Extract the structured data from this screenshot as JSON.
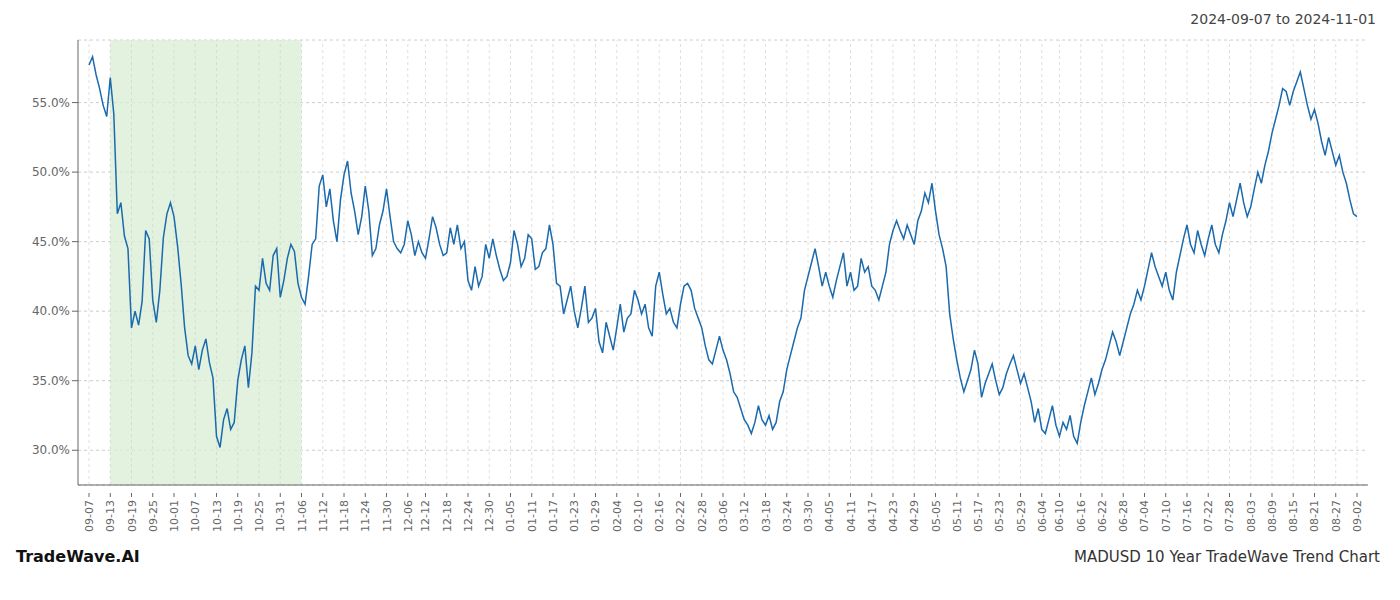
{
  "chart_data": {
    "type": "line",
    "title": "MADUSD 10 Year TradeWave Trend Chart",
    "subtitle": "2024-09-07 to 2024-11-01",
    "annotations": [
      "TradeWave.AI"
    ],
    "color": "#1a6aad",
    "grid": true,
    "shade": {
      "from": "09-13",
      "to": "11-06",
      "color": "#d8edd4"
    },
    "ylim": [
      0.275,
      0.595
    ],
    "yticks": [
      {
        "value": 0.3,
        "label": "30.0%"
      },
      {
        "value": 0.35,
        "label": "35.0%"
      },
      {
        "value": 0.4,
        "label": "40.0%"
      },
      {
        "value": 0.45,
        "label": "45.0%"
      },
      {
        "value": 0.5,
        "label": "50.0%"
      },
      {
        "value": 0.55,
        "label": "55.0%"
      }
    ],
    "categories": [
      "09-07",
      null,
      null,
      null,
      null,
      null,
      "09-13",
      null,
      null,
      null,
      null,
      null,
      "09-19",
      null,
      null,
      null,
      null,
      null,
      "09-25",
      null,
      null,
      null,
      null,
      null,
      "10-01",
      null,
      null,
      null,
      null,
      null,
      "10-07",
      null,
      null,
      null,
      null,
      null,
      "10-13",
      null,
      null,
      null,
      null,
      null,
      "10-19",
      null,
      null,
      null,
      null,
      null,
      "10-25",
      null,
      null,
      null,
      null,
      null,
      "10-31",
      null,
      null,
      null,
      null,
      null,
      "11-06",
      null,
      null,
      null,
      null,
      null,
      "11-12",
      null,
      null,
      null,
      null,
      null,
      "11-18",
      null,
      null,
      null,
      null,
      null,
      "11-24",
      null,
      null,
      null,
      null,
      null,
      "11-30",
      null,
      null,
      null,
      null,
      null,
      "12-06",
      null,
      null,
      null,
      null,
      "12-12",
      null,
      null,
      null,
      null,
      null,
      "12-18",
      null,
      null,
      null,
      null,
      null,
      "12-24",
      null,
      null,
      null,
      null,
      null,
      "12-30",
      null,
      null,
      null,
      null,
      null,
      "01-05",
      null,
      null,
      null,
      null,
      null,
      "01-11",
      null,
      null,
      null,
      null,
      null,
      "01-17",
      null,
      null,
      null,
      null,
      null,
      "01-23",
      null,
      null,
      null,
      null,
      null,
      "01-29",
      null,
      null,
      null,
      null,
      null,
      "02-04",
      null,
      null,
      null,
      null,
      null,
      "02-10",
      null,
      null,
      null,
      null,
      null,
      "02-16",
      null,
      null,
      null,
      null,
      null,
      "02-22",
      null,
      null,
      null,
      null,
      null,
      "02-28",
      null,
      null,
      null,
      null,
      null,
      "03-06",
      null,
      null,
      null,
      null,
      null,
      "03-12",
      null,
      null,
      null,
      null,
      null,
      "03-18",
      null,
      null,
      null,
      null,
      null,
      "03-24",
      null,
      null,
      null,
      null,
      null,
      "03-30",
      null,
      null,
      null,
      null,
      null,
      "04-05",
      null,
      null,
      null,
      null,
      null,
      "04-11",
      null,
      null,
      null,
      null,
      null,
      "04-17",
      null,
      null,
      null,
      null,
      null,
      "04-23",
      null,
      null,
      null,
      null,
      null,
      "04-29",
      null,
      null,
      null,
      null,
      null,
      "05-05",
      null,
      null,
      null,
      null,
      null,
      "05-11",
      null,
      null,
      null,
      null,
      null,
      "05-17",
      null,
      null,
      null,
      null,
      null,
      "05-23",
      null,
      null,
      null,
      null,
      null,
      "05-29",
      null,
      null,
      null,
      null,
      null,
      "06-04",
      null,
      null,
      null,
      null,
      "06-10",
      null,
      null,
      null,
      null,
      null,
      "06-16",
      null,
      null,
      null,
      null,
      null,
      "06-22",
      null,
      null,
      null,
      null,
      null,
      "06-28",
      null,
      null,
      null,
      null,
      null,
      "07-04",
      null,
      null,
      null,
      null,
      null,
      "07-10",
      null,
      null,
      null,
      null,
      null,
      "07-16",
      null,
      null,
      null,
      null,
      null,
      "07-22",
      null,
      null,
      null,
      null,
      null,
      "07-28",
      null,
      null,
      null,
      null,
      null,
      "08-03",
      null,
      null,
      null,
      null,
      null,
      "08-09",
      null,
      null,
      null,
      null,
      null,
      "08-15",
      null,
      null,
      null,
      null,
      null,
      "08-21",
      null,
      null,
      null,
      null,
      null,
      "08-27",
      null,
      null,
      null,
      null,
      null,
      "09-02"
    ],
    "values": [
      0.577,
      0.583,
      0.57,
      0.56,
      0.548,
      0.54,
      0.568,
      0.542,
      0.47,
      0.478,
      0.454,
      0.445,
      0.388,
      0.4,
      0.39,
      0.407,
      0.458,
      0.452,
      0.408,
      0.392,
      0.415,
      0.453,
      0.47,
      0.478,
      0.468,
      0.447,
      0.42,
      0.388,
      0.368,
      0.362,
      0.375,
      0.358,
      0.372,
      0.38,
      0.363,
      0.352,
      0.31,
      0.302,
      0.322,
      0.33,
      0.315,
      0.32,
      0.35,
      0.365,
      0.375,
      0.345,
      0.37,
      0.418,
      0.415,
      0.438,
      0.42,
      0.415,
      0.44,
      0.445,
      0.41,
      0.422,
      0.438,
      0.448,
      0.443,
      0.42,
      0.41,
      0.405,
      0.425,
      0.448,
      0.452,
      0.49,
      0.498,
      0.475,
      0.488,
      0.465,
      0.45,
      0.48,
      0.498,
      0.508,
      0.485,
      0.472,
      0.455,
      0.468,
      0.49,
      0.472,
      0.44,
      0.445,
      0.462,
      0.472,
      0.488,
      0.468,
      0.45,
      0.445,
      0.442,
      0.448,
      0.465,
      0.455,
      0.44,
      0.45,
      0.442,
      0.438,
      0.452,
      0.468,
      0.46,
      0.448,
      0.44,
      0.442,
      0.46,
      0.448,
      0.462,
      0.445,
      0.45,
      0.422,
      0.415,
      0.432,
      0.418,
      0.425,
      0.448,
      0.438,
      0.452,
      0.44,
      0.43,
      0.422,
      0.425,
      0.435,
      0.458,
      0.448,
      0.432,
      0.438,
      0.455,
      0.452,
      0.43,
      0.432,
      0.442,
      0.445,
      0.462,
      0.448,
      0.42,
      0.418,
      0.398,
      0.408,
      0.418,
      0.4,
      0.388,
      0.402,
      0.418,
      0.392,
      0.395,
      0.402,
      0.378,
      0.37,
      0.392,
      0.382,
      0.372,
      0.388,
      0.405,
      0.385,
      0.395,
      0.398,
      0.415,
      0.408,
      0.398,
      0.405,
      0.388,
      0.382,
      0.418,
      0.428,
      0.412,
      0.398,
      0.402,
      0.392,
      0.388,
      0.405,
      0.418,
      0.42,
      0.415,
      0.402,
      0.395,
      0.388,
      0.375,
      0.365,
      0.362,
      0.372,
      0.382,
      0.372,
      0.365,
      0.355,
      0.342,
      0.338,
      0.33,
      0.322,
      0.318,
      0.312,
      0.32,
      0.332,
      0.322,
      0.318,
      0.325,
      0.315,
      0.32,
      0.335,
      0.342,
      0.358,
      0.368,
      0.378,
      0.388,
      0.395,
      0.415,
      0.425,
      0.435,
      0.445,
      0.432,
      0.418,
      0.428,
      0.418,
      0.41,
      0.422,
      0.432,
      0.442,
      0.418,
      0.428,
      0.415,
      0.418,
      0.438,
      0.428,
      0.432,
      0.418,
      0.415,
      0.408,
      0.418,
      0.428,
      0.448,
      0.458,
      0.465,
      0.458,
      0.452,
      0.462,
      0.455,
      0.448,
      0.465,
      0.472,
      0.485,
      0.478,
      0.492,
      0.472,
      0.455,
      0.445,
      0.432,
      0.398,
      0.38,
      0.365,
      0.352,
      0.342,
      0.35,
      0.358,
      0.372,
      0.362,
      0.338,
      0.348,
      0.355,
      0.362,
      0.35,
      0.34,
      0.345,
      0.355,
      0.362,
      0.368,
      0.358,
      0.348,
      0.355,
      0.345,
      0.335,
      0.32,
      0.33,
      0.315,
      0.312,
      0.322,
      0.332,
      0.318,
      0.31,
      0.32,
      0.315,
      0.325,
      0.31,
      0.305,
      0.32,
      0.332,
      0.342,
      0.352,
      0.34,
      0.348,
      0.358,
      0.365,
      0.375,
      0.385,
      0.378,
      0.368,
      0.378,
      0.388,
      0.398,
      0.405,
      0.415,
      0.408,
      0.418,
      0.43,
      0.442,
      0.432,
      0.425,
      0.418,
      0.428,
      0.415,
      0.408,
      0.428,
      0.44,
      0.452,
      0.462,
      0.448,
      0.442,
      0.458,
      0.448,
      0.44,
      0.452,
      0.462,
      0.448,
      0.442,
      0.455,
      0.465,
      0.478,
      0.468,
      0.48,
      0.492,
      0.478,
      0.468,
      0.475,
      0.488,
      0.5,
      0.492,
      0.505,
      0.515,
      0.528,
      0.538,
      0.548,
      0.56,
      0.558,
      0.548,
      0.558,
      0.565,
      0.572,
      0.56,
      0.548,
      0.538,
      0.545,
      0.535,
      0.522,
      0.512,
      0.525,
      0.515,
      0.505,
      0.512,
      0.5,
      0.492,
      0.48,
      0.47,
      0.468
    ]
  }
}
